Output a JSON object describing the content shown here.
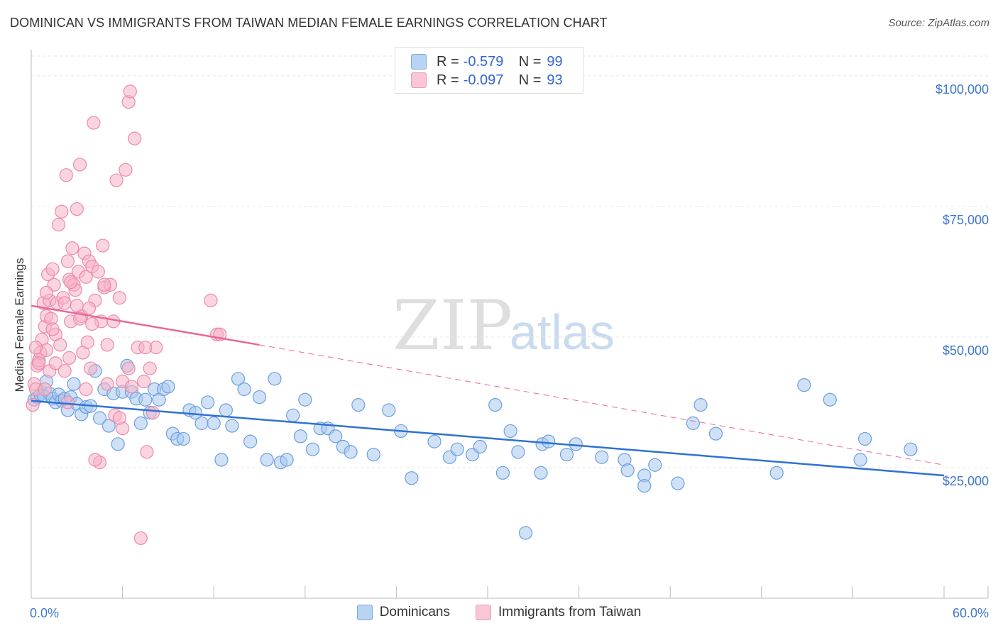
{
  "title": "DOMINICAN VS IMMIGRANTS FROM TAIWAN MEDIAN FEMALE EARNINGS CORRELATION CHART",
  "source": "Source: ZipAtlas.com",
  "watermark": {
    "zip": "ZIP",
    "atlas": "atlas"
  },
  "legend": {
    "rows": [
      {
        "r_label": "R =",
        "r_value": "-0.579",
        "n_label": "N =",
        "n_value": "99"
      },
      {
        "r_label": "R =",
        "r_value": "-0.097",
        "n_label": "N =",
        "n_value": "93"
      }
    ]
  },
  "bottom_legend": {
    "series1": "Dominicans",
    "series2": "Immigrants from Taiwan"
  },
  "colors": {
    "blue_fill": "#a9c8ee",
    "blue_stroke": "#6a9fe0",
    "blue_line": "#2f72d4",
    "pink_fill": "#f5b3c7",
    "pink_stroke": "#ec8aa8",
    "pink_line": "#e8679a",
    "axis_label": "#3f78cc",
    "grid": "#e6e6e6"
  },
  "chart_data": {
    "type": "scatter",
    "title": "DOMINICAN VS IMMIGRANTS FROM TAIWAN MEDIAN FEMALE EARNINGS CORRELATION CHART",
    "xlabel": "",
    "ylabel": "Median Female Earnings",
    "xlim": [
      0,
      60
    ],
    "ylim": [
      0,
      105000
    ],
    "x_tick_labels": [
      "0.0%",
      "60.0%"
    ],
    "y_ticks": [
      25000,
      50000,
      75000,
      100000
    ],
    "y_tick_labels": [
      "$25,000",
      "$50,000",
      "$75,000",
      "$100,000"
    ],
    "series": [
      {
        "name": "Dominicans",
        "r": -0.579,
        "n": 99,
        "trend": {
          "x0": 0,
          "y0": 37800,
          "x1": 60,
          "y1": 23500
        },
        "points": [
          [
            0.2,
            38000
          ],
          [
            0.4,
            38500
          ],
          [
            0.6,
            39000
          ],
          [
            0.8,
            38800
          ],
          [
            1.0,
            41500
          ],
          [
            1.2,
            39200
          ],
          [
            1.4,
            38200
          ],
          [
            1.6,
            37500
          ],
          [
            1.8,
            39000
          ],
          [
            2.0,
            37800
          ],
          [
            2.2,
            38200
          ],
          [
            2.4,
            36000
          ],
          [
            2.6,
            38500
          ],
          [
            2.8,
            41000
          ],
          [
            3.0,
            37200
          ],
          [
            3.3,
            35200
          ],
          [
            3.6,
            36600
          ],
          [
            3.9,
            36800
          ],
          [
            4.2,
            43500
          ],
          [
            4.5,
            34500
          ],
          [
            4.8,
            40000
          ],
          [
            5.1,
            33000
          ],
          [
            5.4,
            39200
          ],
          [
            5.7,
            29500
          ],
          [
            6.0,
            39500
          ],
          [
            6.3,
            44500
          ],
          [
            6.6,
            39500
          ],
          [
            6.9,
            38200
          ],
          [
            7.2,
            33500
          ],
          [
            7.5,
            38000
          ],
          [
            7.8,
            35500
          ],
          [
            8.1,
            40000
          ],
          [
            8.4,
            38000
          ],
          [
            8.7,
            40000
          ],
          [
            9.0,
            40500
          ],
          [
            9.3,
            31500
          ],
          [
            9.6,
            30500
          ],
          [
            10.0,
            30500
          ],
          [
            10.4,
            36000
          ],
          [
            10.8,
            35500
          ],
          [
            11.2,
            33500
          ],
          [
            11.6,
            37500
          ],
          [
            12.0,
            33500
          ],
          [
            12.5,
            26500
          ],
          [
            12.8,
            36000
          ],
          [
            13.2,
            33000
          ],
          [
            13.6,
            42000
          ],
          [
            14.0,
            40000
          ],
          [
            14.4,
            30000
          ],
          [
            15.0,
            38500
          ],
          [
            15.5,
            26500
          ],
          [
            16.0,
            42000
          ],
          [
            16.4,
            26000
          ],
          [
            16.8,
            26500
          ],
          [
            17.2,
            35000
          ],
          [
            17.7,
            31000
          ],
          [
            18.0,
            38000
          ],
          [
            18.5,
            28500
          ],
          [
            19.0,
            32500
          ],
          [
            19.5,
            32500
          ],
          [
            20.0,
            31000
          ],
          [
            20.5,
            29000
          ],
          [
            21.0,
            28000
          ],
          [
            21.5,
            37000
          ],
          [
            22.5,
            27500
          ],
          [
            23.5,
            36000
          ],
          [
            24.3,
            32000
          ],
          [
            25.0,
            23000
          ],
          [
            26.5,
            30000
          ],
          [
            27.5,
            27000
          ],
          [
            28.0,
            28500
          ],
          [
            29.0,
            27500
          ],
          [
            29.5,
            29000
          ],
          [
            30.5,
            37000
          ],
          [
            31.0,
            24000
          ],
          [
            31.5,
            32000
          ],
          [
            32.0,
            28000
          ],
          [
            32.5,
            12500
          ],
          [
            33.5,
            24000
          ],
          [
            33.6,
            29500
          ],
          [
            34.0,
            30000
          ],
          [
            35.2,
            27500
          ],
          [
            35.8,
            29500
          ],
          [
            37.5,
            27000
          ],
          [
            39.0,
            26500
          ],
          [
            39.2,
            24500
          ],
          [
            40.3,
            23500
          ],
          [
            40.3,
            21500
          ],
          [
            41.0,
            25500
          ],
          [
            42.5,
            22000
          ],
          [
            43.5,
            33500
          ],
          [
            44.0,
            37000
          ],
          [
            45.0,
            31500
          ],
          [
            49.0,
            24000
          ],
          [
            50.8,
            40800
          ],
          [
            52.5,
            38000
          ],
          [
            54.5,
            26500
          ],
          [
            54.8,
            30500
          ],
          [
            57.8,
            28500
          ]
        ]
      },
      {
        "name": "Immigrants from Taiwan",
        "r": -0.097,
        "n": 93,
        "trend": {
          "x0": 0,
          "y0": 56000,
          "x1": 15,
          "y1": 48500,
          "dash_x1": 60,
          "dash_y1": 25500
        },
        "points": [
          [
            0.1,
            37000
          ],
          [
            0.2,
            41000
          ],
          [
            0.3,
            40000
          ],
          [
            0.4,
            44500
          ],
          [
            0.5,
            45500
          ],
          [
            0.6,
            47000
          ],
          [
            0.7,
            49500
          ],
          [
            0.8,
            56500
          ],
          [
            0.9,
            52000
          ],
          [
            1.0,
            54000
          ],
          [
            1.0,
            47500
          ],
          [
            1.1,
            62000
          ],
          [
            1.2,
            57000
          ],
          [
            1.3,
            53500
          ],
          [
            1.4,
            63000
          ],
          [
            1.5,
            60000
          ],
          [
            1.6,
            50500
          ],
          [
            1.7,
            56500
          ],
          [
            1.8,
            71500
          ],
          [
            1.9,
            48500
          ],
          [
            2.0,
            74000
          ],
          [
            2.1,
            57500
          ],
          [
            2.2,
            56500
          ],
          [
            2.3,
            81000
          ],
          [
            2.4,
            64500
          ],
          [
            2.5,
            61000
          ],
          [
            2.5,
            46000
          ],
          [
            2.6,
            53000
          ],
          [
            2.7,
            67000
          ],
          [
            2.8,
            60000
          ],
          [
            2.9,
            59000
          ],
          [
            3.0,
            74500
          ],
          [
            3.1,
            62500
          ],
          [
            3.2,
            83000
          ],
          [
            3.3,
            54000
          ],
          [
            3.4,
            47000
          ],
          [
            3.5,
            66000
          ],
          [
            3.6,
            61500
          ],
          [
            3.7,
            49000
          ],
          [
            3.8,
            64500
          ],
          [
            3.9,
            44000
          ],
          [
            4.0,
            63500
          ],
          [
            4.1,
            91000
          ],
          [
            4.2,
            57000
          ],
          [
            4.4,
            62500
          ],
          [
            4.5,
            26000
          ],
          [
            4.6,
            53000
          ],
          [
            4.7,
            67500
          ],
          [
            4.8,
            59500
          ],
          [
            5.0,
            48500
          ],
          [
            5.2,
            60000
          ],
          [
            5.4,
            53000
          ],
          [
            5.6,
            80000
          ],
          [
            5.8,
            57500
          ],
          [
            6.0,
            41500
          ],
          [
            6.2,
            82000
          ],
          [
            6.4,
            95000
          ],
          [
            6.5,
            97000
          ],
          [
            6.6,
            40500
          ],
          [
            6.8,
            88000
          ],
          [
            7.0,
            48000
          ],
          [
            7.2,
            11500
          ],
          [
            7.4,
            41500
          ],
          [
            7.6,
            28000
          ],
          [
            7.8,
            44000
          ],
          [
            8.0,
            35500
          ],
          [
            8.2,
            48000
          ],
          [
            11.8,
            57000
          ],
          [
            12.2,
            50500
          ],
          [
            1.2,
            43500
          ],
          [
            2.4,
            37500
          ],
          [
            3.0,
            56000
          ],
          [
            3.6,
            40000
          ],
          [
            4.2,
            26500
          ],
          [
            5.0,
            41000
          ],
          [
            5.5,
            35000
          ],
          [
            6.0,
            32500
          ],
          [
            6.4,
            44000
          ],
          [
            1.6,
            45000
          ],
          [
            0.9,
            40000
          ],
          [
            1.4,
            51500
          ],
          [
            2.2,
            43500
          ],
          [
            3.8,
            55500
          ],
          [
            4.8,
            60000
          ],
          [
            0.5,
            45000
          ],
          [
            0.3,
            48000
          ],
          [
            1.0,
            58500
          ],
          [
            2.6,
            60500
          ],
          [
            3.2,
            53500
          ],
          [
            4.0,
            52500
          ],
          [
            5.8,
            34500
          ],
          [
            7.5,
            48000
          ],
          [
            12.4,
            50500
          ]
        ]
      }
    ]
  }
}
